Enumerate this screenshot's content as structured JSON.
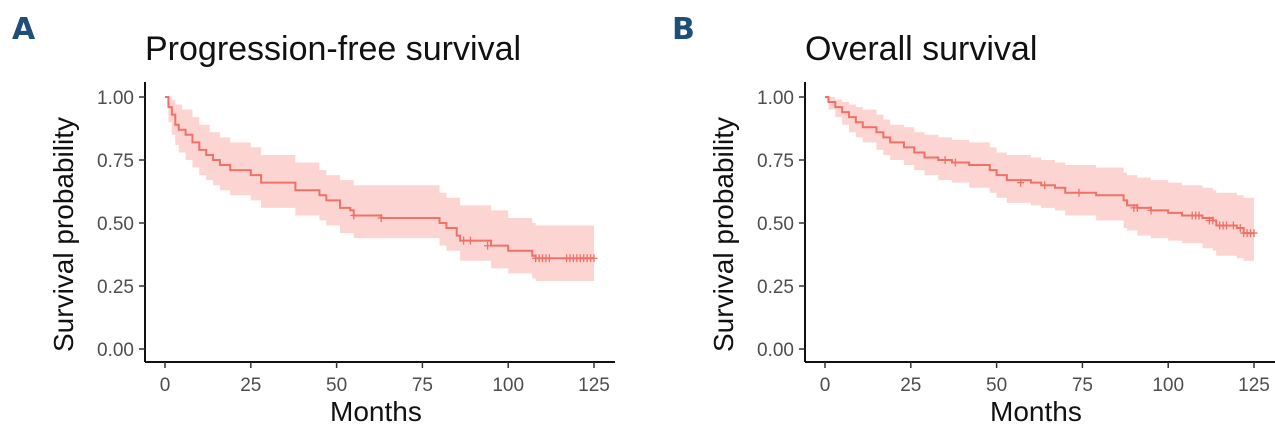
{
  "panels": [
    {
      "letter": "A",
      "title": "Progression-free survival"
    },
    {
      "letter": "B",
      "title": "Overall survival"
    }
  ],
  "chart_data": [
    {
      "type": "line",
      "title": "Progression-free survival",
      "xlabel": "Months",
      "ylabel": "Survival  probability",
      "xlim": [
        0,
        125
      ],
      "ylim": [
        0,
        1
      ],
      "x_ticks": [
        0,
        25,
        50,
        75,
        100,
        125
      ],
      "y_ticks": [
        0.0,
        0.25,
        0.5,
        0.75,
        1.0
      ],
      "y_tick_labels": [
        "0.00",
        "0.25",
        "0.50",
        "0.75",
        "1.00"
      ],
      "grid": false,
      "line_color": "#f07167",
      "band_color": "#fcd5d2",
      "series": [
        {
          "steps": [
            [
              0,
              1.0
            ],
            [
              1,
              0.96
            ],
            [
              2,
              0.93
            ],
            [
              3,
              0.89
            ],
            [
              4,
              0.87
            ],
            [
              6,
              0.85
            ],
            [
              8,
              0.82
            ],
            [
              10,
              0.79
            ],
            [
              12,
              0.77
            ],
            [
              14,
              0.75
            ],
            [
              16,
              0.73
            ],
            [
              19,
              0.71
            ],
            [
              25,
              0.69
            ],
            [
              28,
              0.66
            ],
            [
              38,
              0.63
            ],
            [
              45,
              0.61
            ],
            [
              47,
              0.59
            ],
            [
              51,
              0.56
            ],
            [
              54,
              0.55
            ],
            [
              55,
              0.53
            ],
            [
              63,
              0.52
            ],
            [
              79,
              0.52
            ],
            [
              80,
              0.5
            ],
            [
              82,
              0.48
            ],
            [
              85,
              0.45
            ],
            [
              86,
              0.43
            ],
            [
              95,
              0.41
            ],
            [
              100,
              0.39
            ],
            [
              107,
              0.37
            ],
            [
              108,
              0.36
            ],
            [
              125,
              0.36
            ]
          ],
          "ci_upper": [
            [
              0,
              1.0
            ],
            [
              1,
              1.0
            ],
            [
              2,
              0.99
            ],
            [
              3,
              0.97
            ],
            [
              5,
              0.95
            ],
            [
              8,
              0.92
            ],
            [
              10,
              0.89
            ],
            [
              13,
              0.86
            ],
            [
              16,
              0.84
            ],
            [
              19,
              0.82
            ],
            [
              25,
              0.8
            ],
            [
              28,
              0.77
            ],
            [
              38,
              0.74
            ],
            [
              45,
              0.71
            ],
            [
              47,
              0.69
            ],
            [
              51,
              0.67
            ],
            [
              55,
              0.65
            ],
            [
              79,
              0.65
            ],
            [
              80,
              0.62
            ],
            [
              82,
              0.6
            ],
            [
              86,
              0.57
            ],
            [
              95,
              0.55
            ],
            [
              100,
              0.52
            ],
            [
              107,
              0.5
            ],
            [
              108,
              0.49
            ],
            [
              125,
              0.49
            ]
          ],
          "ci_lower": [
            [
              0,
              1.0
            ],
            [
              1,
              0.9
            ],
            [
              2,
              0.85
            ],
            [
              3,
              0.81
            ],
            [
              4,
              0.78
            ],
            [
              6,
              0.75
            ],
            [
              8,
              0.72
            ],
            [
              10,
              0.69
            ],
            [
              12,
              0.67
            ],
            [
              14,
              0.65
            ],
            [
              16,
              0.63
            ],
            [
              19,
              0.61
            ],
            [
              25,
              0.59
            ],
            [
              28,
              0.56
            ],
            [
              38,
              0.53
            ],
            [
              45,
              0.51
            ],
            [
              47,
              0.49
            ],
            [
              51,
              0.46
            ],
            [
              55,
              0.44
            ],
            [
              79,
              0.44
            ],
            [
              80,
              0.41
            ],
            [
              82,
              0.39
            ],
            [
              86,
              0.35
            ],
            [
              95,
              0.32
            ],
            [
              100,
              0.3
            ],
            [
              107,
              0.28
            ],
            [
              108,
              0.27
            ],
            [
              125,
              0.27
            ]
          ],
          "censor": [
            [
              55,
              0.53
            ],
            [
              63,
              0.52
            ],
            [
              87,
              0.43
            ],
            [
              89,
              0.43
            ],
            [
              94,
              0.41
            ],
            [
              108,
              0.36
            ],
            [
              109,
              0.36
            ],
            [
              110,
              0.36
            ],
            [
              111,
              0.36
            ],
            [
              112,
              0.36
            ],
            [
              117,
              0.36
            ],
            [
              118,
              0.36
            ],
            [
              119,
              0.36
            ],
            [
              120,
              0.36
            ],
            [
              121,
              0.36
            ],
            [
              122,
              0.36
            ],
            [
              123,
              0.36
            ],
            [
              124,
              0.36
            ],
            [
              125,
              0.36
            ]
          ]
        }
      ]
    },
    {
      "type": "line",
      "title": "Overall survival",
      "xlabel": "Months",
      "ylabel": "Survival  probability",
      "xlim": [
        0,
        125
      ],
      "ylim": [
        0,
        1
      ],
      "x_ticks": [
        0,
        25,
        50,
        75,
        100,
        125
      ],
      "y_ticks": [
        0.0,
        0.25,
        0.5,
        0.75,
        1.0
      ],
      "y_tick_labels": [
        "0.00",
        "0.25",
        "0.50",
        "0.75",
        "1.00"
      ],
      "grid": false,
      "line_color": "#f07167",
      "band_color": "#fcd5d2",
      "series": [
        {
          "steps": [
            [
              0,
              1.0
            ],
            [
              1,
              0.98
            ],
            [
              3,
              0.96
            ],
            [
              5,
              0.94
            ],
            [
              7,
              0.92
            ],
            [
              9,
              0.9
            ],
            [
              11,
              0.88
            ],
            [
              15,
              0.86
            ],
            [
              17,
              0.84
            ],
            [
              19,
              0.82
            ],
            [
              23,
              0.8
            ],
            [
              26,
              0.78
            ],
            [
              29,
              0.76
            ],
            [
              33,
              0.75
            ],
            [
              37,
              0.74
            ],
            [
              42,
              0.73
            ],
            [
              48,
              0.71
            ],
            [
              50,
              0.69
            ],
            [
              53,
              0.67
            ],
            [
              60,
              0.66
            ],
            [
              63,
              0.65
            ],
            [
              67,
              0.64
            ],
            [
              70,
              0.62
            ],
            [
              75,
              0.62
            ],
            [
              79,
              0.61
            ],
            [
              87,
              0.59
            ],
            [
              88,
              0.57
            ],
            [
              91,
              0.56
            ],
            [
              95,
              0.55
            ],
            [
              100,
              0.54
            ],
            [
              104,
              0.53
            ],
            [
              110,
              0.52
            ],
            [
              113,
              0.51
            ],
            [
              114,
              0.49
            ],
            [
              118,
              0.49
            ],
            [
              120,
              0.48
            ],
            [
              122,
              0.46
            ],
            [
              125,
              0.46
            ]
          ],
          "ci_upper": [
            [
              0,
              1.0
            ],
            [
              1,
              1.0
            ],
            [
              3,
              0.99
            ],
            [
              5,
              0.98
            ],
            [
              7,
              0.97
            ],
            [
              9,
              0.96
            ],
            [
              11,
              0.95
            ],
            [
              15,
              0.93
            ],
            [
              17,
              0.91
            ],
            [
              19,
              0.89
            ],
            [
              23,
              0.88
            ],
            [
              26,
              0.86
            ],
            [
              29,
              0.85
            ],
            [
              33,
              0.84
            ],
            [
              37,
              0.83
            ],
            [
              42,
              0.82
            ],
            [
              48,
              0.8
            ],
            [
              50,
              0.78
            ],
            [
              53,
              0.77
            ],
            [
              60,
              0.76
            ],
            [
              63,
              0.75
            ],
            [
              67,
              0.74
            ],
            [
              70,
              0.73
            ],
            [
              79,
              0.72
            ],
            [
              87,
              0.7
            ],
            [
              88,
              0.69
            ],
            [
              91,
              0.68
            ],
            [
              95,
              0.67
            ],
            [
              100,
              0.66
            ],
            [
              104,
              0.65
            ],
            [
              110,
              0.64
            ],
            [
              113,
              0.63
            ],
            [
              114,
              0.62
            ],
            [
              120,
              0.61
            ],
            [
              122,
              0.6
            ],
            [
              125,
              0.6
            ]
          ],
          "ci_lower": [
            [
              0,
              1.0
            ],
            [
              1,
              0.95
            ],
            [
              3,
              0.92
            ],
            [
              5,
              0.89
            ],
            [
              7,
              0.86
            ],
            [
              9,
              0.84
            ],
            [
              11,
              0.82
            ],
            [
              15,
              0.79
            ],
            [
              17,
              0.77
            ],
            [
              19,
              0.75
            ],
            [
              23,
              0.73
            ],
            [
              26,
              0.71
            ],
            [
              29,
              0.69
            ],
            [
              33,
              0.67
            ],
            [
              37,
              0.66
            ],
            [
              42,
              0.64
            ],
            [
              48,
              0.62
            ],
            [
              50,
              0.6
            ],
            [
              53,
              0.58
            ],
            [
              60,
              0.57
            ],
            [
              63,
              0.56
            ],
            [
              67,
              0.55
            ],
            [
              70,
              0.53
            ],
            [
              79,
              0.51
            ],
            [
              87,
              0.48
            ],
            [
              88,
              0.47
            ],
            [
              91,
              0.45
            ],
            [
              95,
              0.44
            ],
            [
              100,
              0.43
            ],
            [
              104,
              0.42
            ],
            [
              110,
              0.4
            ],
            [
              113,
              0.39
            ],
            [
              114,
              0.37
            ],
            [
              120,
              0.36
            ],
            [
              122,
              0.35
            ],
            [
              125,
              0.35
            ]
          ],
          "censor": [
            [
              35,
              0.75
            ],
            [
              38,
              0.74
            ],
            [
              57,
              0.66
            ],
            [
              64,
              0.65
            ],
            [
              74,
              0.62
            ],
            [
              90,
              0.56
            ],
            [
              91,
              0.56
            ],
            [
              95,
              0.55
            ],
            [
              107,
              0.53
            ],
            [
              108,
              0.53
            ],
            [
              109,
              0.53
            ],
            [
              112,
              0.51
            ],
            [
              113,
              0.51
            ],
            [
              115,
              0.49
            ],
            [
              116,
              0.49
            ],
            [
              117,
              0.49
            ],
            [
              119,
              0.49
            ],
            [
              121,
              0.48
            ],
            [
              122,
              0.46
            ],
            [
              123,
              0.46
            ],
            [
              124,
              0.46
            ],
            [
              125,
              0.46
            ]
          ]
        }
      ]
    }
  ]
}
